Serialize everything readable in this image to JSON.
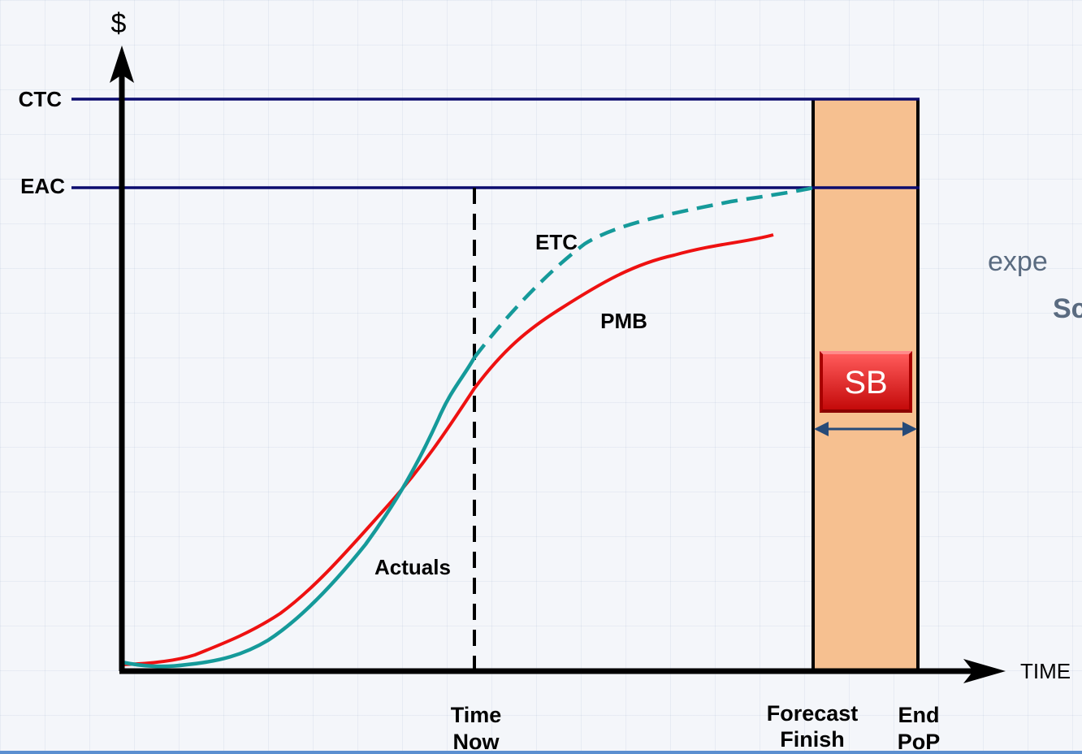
{
  "y_axis_label": "$",
  "x_axis_label": "TIME",
  "lines": {
    "ctc": "CTC",
    "eac": "EAC"
  },
  "curve_labels": {
    "etc": "ETC",
    "pmb": "PMB",
    "actuals": "Actuals"
  },
  "markers": {
    "time_now": [
      "Time",
      "Now"
    ],
    "forecast_finish": [
      "Forecast",
      "Finish"
    ],
    "end_pop": [
      "End",
      "PoP"
    ]
  },
  "schedule_buffer": "SB",
  "background_text": {
    "line1": "expe",
    "line2": "Sc"
  },
  "colors": {
    "actuals": "#159a9a",
    "pmb": "#ee1111",
    "etc": "#159a9a",
    "levels": "#0c0c6e",
    "buffer_fill": "#f6c090",
    "sb_button": "#e01818"
  }
}
